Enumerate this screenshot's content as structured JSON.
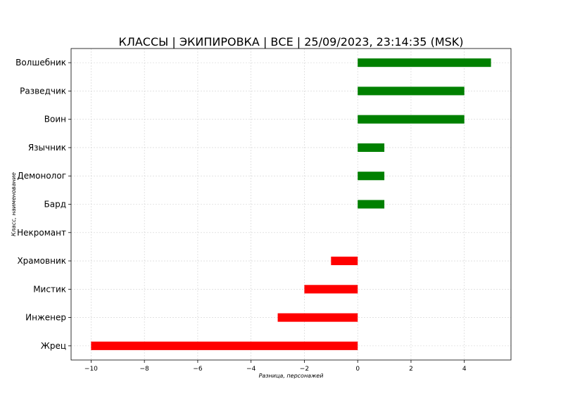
{
  "chart_data": {
    "type": "bar",
    "orientation": "horizontal",
    "title": "КЛАССЫ | ЭКИПИРОВКА | ВСЕ | 25/09/2023, 23:14:35 (MSK)",
    "xlabel": "Разница, персонажей",
    "ylabel": "Класс, наименование",
    "categories": [
      "Волшебник",
      "Разведчик",
      "Воин",
      "Язычник",
      "Демонолог",
      "Бард",
      "Некромант",
      "Храмовник",
      "Мистик",
      "Инженер",
      "Жрец"
    ],
    "values": [
      5,
      4,
      4,
      1,
      1,
      1,
      0,
      -1,
      -2,
      -3,
      -10
    ],
    "xlim": [
      -10.75,
      5.75
    ],
    "xticks": [
      -10,
      -8,
      -6,
      -4,
      -2,
      0,
      2,
      4
    ],
    "xtick_labels": [
      "−10",
      "−8",
      "−6",
      "−4",
      "−2",
      "0",
      "2",
      "4"
    ],
    "grid": true,
    "colors": {
      "positive": "#008000",
      "negative": "#ff0000"
    }
  }
}
